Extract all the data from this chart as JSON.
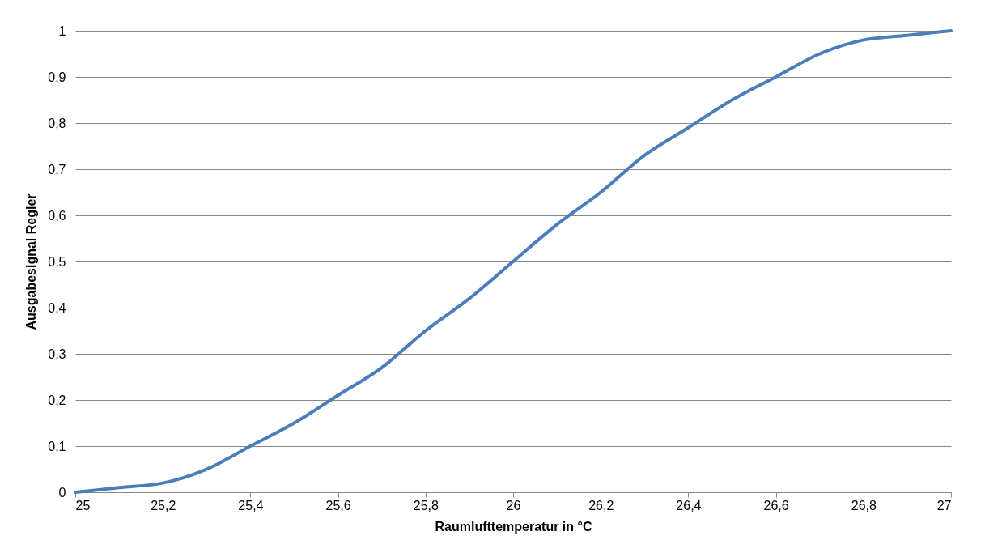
{
  "chart_data": {
    "type": "line",
    "xlabel": "Raumlufttemperatur in °C",
    "ylabel": "Ausgabesignal Regler",
    "x": [
      25,
      25.1,
      25.2,
      25.3,
      25.4,
      25.5,
      25.6,
      25.7,
      25.8,
      25.9,
      26,
      26.1,
      26.2,
      26.3,
      26.4,
      26.5,
      26.6,
      26.7,
      26.8,
      26.9,
      27
    ],
    "series": [
      {
        "color": "#4a7ebb",
        "values": [
          0,
          0.01,
          0.02,
          0.05,
          0.1,
          0.15,
          0.21,
          0.27,
          0.35,
          0.42,
          0.5,
          0.58,
          0.65,
          0.73,
          0.79,
          0.85,
          0.9,
          0.95,
          0.98,
          0.99,
          1
        ]
      }
    ],
    "xlim": [
      25,
      27
    ],
    "xticks": [
      25,
      {
        "value": 25.2,
        "label": "25,2"
      },
      {
        "value": 25.4,
        "label": "25,4"
      },
      {
        "value": 25.6,
        "label": "25,6"
      },
      {
        "value": 25.8,
        "label": "25,8"
      },
      26,
      {
        "value": 26.2,
        "label": "26,2"
      },
      {
        "value": 26.4,
        "label": "26,4"
      },
      {
        "value": 26.6,
        "label": "26,6"
      },
      {
        "value": 26.8,
        "label": "26,8"
      },
      27
    ],
    "ylim": [
      0,
      1
    ],
    "yticks": [
      0,
      {
        "value": 0.1,
        "label": "0,1"
      },
      {
        "value": 0.2,
        "label": "0,2"
      },
      {
        "value": 0.3,
        "label": "0,3"
      },
      {
        "value": 0.4,
        "label": "0,4"
      },
      {
        "value": 0.5,
        "label": "0,5"
      },
      {
        "value": 0.6,
        "label": "0,6"
      },
      {
        "value": 0.7,
        "label": "0,7"
      },
      {
        "value": 0.8,
        "label": "0,8"
      },
      {
        "value": 0.9,
        "label": "0,9"
      },
      1
    ],
    "grid": "y",
    "marker": "none",
    "line_style": "solid"
  }
}
